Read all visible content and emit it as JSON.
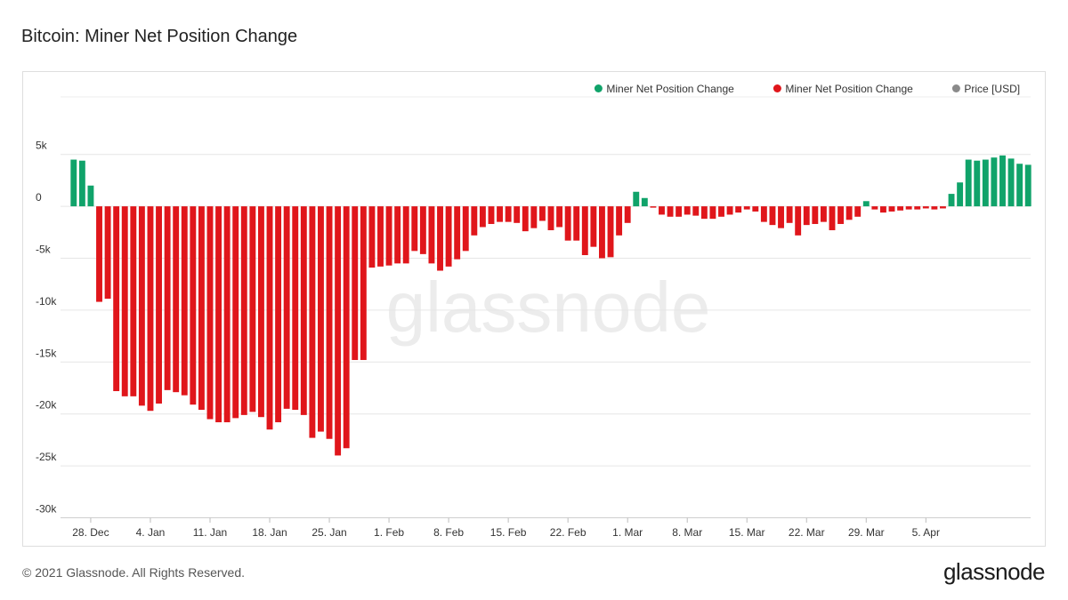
{
  "page": {
    "title": "Bitcoin: Miner Net Position Change",
    "copyright": "© 2021 Glassnode. All Rights Reserved.",
    "logo_text": "glassnode",
    "watermark": "glassnode"
  },
  "chart_data": {
    "type": "bar",
    "title": "Bitcoin: Miner Net Position Change",
    "legend": [
      {
        "label": "Miner Net Position Change",
        "color": "#10a36a"
      },
      {
        "label": "Miner Net Position Change",
        "color": "#e0161b"
      },
      {
        "label": "Price [USD]",
        "color": "#8a8a8a",
        "muted": true
      }
    ],
    "legend_position": "top-right",
    "colors": {
      "positive": "#10a36a",
      "negative": "#e0161b"
    },
    "ylim": [
      -30000,
      9000
    ],
    "yticks": [
      5000,
      0,
      -5000,
      -10000,
      -15000,
      -20000,
      -25000,
      -30000
    ],
    "ytick_labels": [
      "5k",
      "0",
      "-5k",
      "-10k",
      "-15k",
      "-20k",
      "-25k",
      "-30k"
    ],
    "grid": true,
    "x_start": "2020-12-26",
    "xticks": [
      {
        "date": "2020-12-28",
        "label": "28. Dec"
      },
      {
        "date": "2021-01-04",
        "label": "4. Jan"
      },
      {
        "date": "2021-01-11",
        "label": "11. Jan"
      },
      {
        "date": "2021-01-18",
        "label": "18. Jan"
      },
      {
        "date": "2021-01-25",
        "label": "25. Jan"
      },
      {
        "date": "2021-02-01",
        "label": "1. Feb"
      },
      {
        "date": "2021-02-08",
        "label": "8. Feb"
      },
      {
        "date": "2021-02-15",
        "label": "15. Feb"
      },
      {
        "date": "2021-02-22",
        "label": "22. Feb"
      },
      {
        "date": "2021-03-01",
        "label": "1. Mar"
      },
      {
        "date": "2021-03-08",
        "label": "8. Mar"
      },
      {
        "date": "2021-03-15",
        "label": "15. Mar"
      },
      {
        "date": "2021-03-22",
        "label": "22. Mar"
      },
      {
        "date": "2021-03-29",
        "label": "29. Mar"
      },
      {
        "date": "2021-04-05",
        "label": "5. Apr"
      }
    ],
    "values": [
      4500,
      4400,
      2000,
      -9200,
      -8900,
      -17800,
      -18300,
      -18300,
      -19200,
      -19700,
      -19000,
      -17700,
      -17900,
      -18200,
      -19100,
      -19600,
      -20500,
      -20800,
      -20800,
      -20400,
      -20100,
      -19800,
      -20300,
      -21500,
      -20800,
      -19500,
      -19600,
      -20100,
      -22300,
      -21700,
      -22400,
      -24000,
      -23300,
      -14800,
      -14800,
      -5900,
      -5800,
      -5700,
      -5500,
      -5500,
      -4300,
      -4600,
      -5500,
      -6200,
      -5800,
      -5100,
      -4300,
      -2800,
      -2000,
      -1700,
      -1500,
      -1500,
      -1600,
      -2400,
      -2100,
      -1400,
      -2300,
      -2000,
      -3300,
      -3300,
      -4700,
      -3900,
      -5000,
      -4900,
      -2800,
      -1600,
      1400,
      800,
      -100,
      -800,
      -1000,
      -1000,
      -800,
      -900,
      -1200,
      -1200,
      -1000,
      -800,
      -600,
      -300,
      -500,
      -1500,
      -1800,
      -2100,
      -1600,
      -2800,
      -1800,
      -1700,
      -1500,
      -2300,
      -1700,
      -1300,
      -1000,
      500,
      -300,
      -600,
      -500,
      -400,
      -300,
      -300,
      -200,
      -300,
      -200,
      1200,
      2300,
      4500,
      4400,
      4500,
      4700,
      4900,
      4600,
      4100,
      4000
    ]
  }
}
